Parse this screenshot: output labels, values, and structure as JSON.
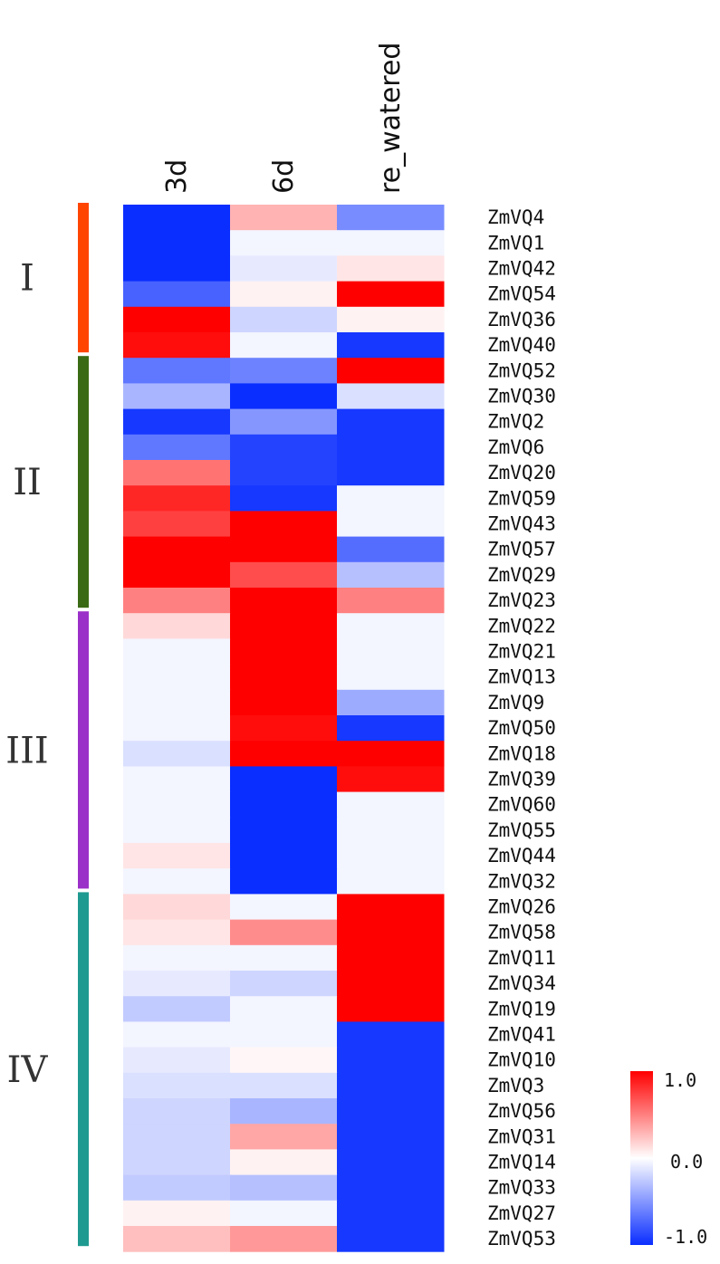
{
  "chart_data": {
    "type": "heatmap",
    "columns": [
      "3d",
      "6d",
      "re_watered"
    ],
    "rows": [
      "ZmVQ4",
      "ZmVQ1",
      "ZmVQ42",
      "ZmVQ54",
      "ZmVQ36",
      "ZmVQ40",
      "ZmVQ52",
      "ZmVQ30",
      "ZmVQ2",
      "ZmVQ6",
      "ZmVQ20",
      "ZmVQ59",
      "ZmVQ43",
      "ZmVQ57",
      "ZmVQ29",
      "ZmVQ23",
      "ZmVQ22",
      "ZmVQ21",
      "ZmVQ13",
      "ZmVQ9",
      "ZmVQ50",
      "ZmVQ18",
      "ZmVQ39",
      "ZmVQ60",
      "ZmVQ55",
      "ZmVQ44",
      "ZmVQ32",
      "ZmVQ26",
      "ZmVQ58",
      "ZmVQ11",
      "ZmVQ34",
      "ZmVQ19",
      "ZmVQ41",
      "ZmVQ10",
      "ZmVQ3",
      "ZmVQ56",
      "ZmVQ31",
      "ZmVQ14",
      "ZmVQ33",
      "ZmVQ27",
      "ZmVQ53"
    ],
    "values": [
      [
        -1.0,
        0.3,
        -0.55
      ],
      [
        -1.0,
        -0.05,
        -0.05
      ],
      [
        -1.0,
        -0.1,
        0.1
      ],
      [
        -0.75,
        0.05,
        1.0
      ],
      [
        1.0,
        -0.2,
        0.05
      ],
      [
        0.95,
        -0.05,
        -0.95
      ],
      [
        -0.65,
        -0.6,
        1.0
      ],
      [
        -0.35,
        -1.0,
        -0.15
      ],
      [
        -0.95,
        -0.5,
        -0.95
      ],
      [
        -0.65,
        -0.9,
        -0.95
      ],
      [
        0.55,
        -0.9,
        -0.95
      ],
      [
        0.85,
        -0.95,
        -0.05
      ],
      [
        0.75,
        1.0,
        -0.05
      ],
      [
        1.0,
        1.0,
        -0.7
      ],
      [
        1.0,
        0.7,
        -0.3
      ],
      [
        0.5,
        1.0,
        0.5
      ],
      [
        0.15,
        1.0,
        -0.05
      ],
      [
        -0.05,
        1.0,
        -0.05
      ],
      [
        -0.05,
        1.0,
        -0.05
      ],
      [
        -0.05,
        1.0,
        -0.4
      ],
      [
        -0.05,
        0.95,
        -0.95
      ],
      [
        -0.15,
        1.0,
        1.0
      ],
      [
        -0.05,
        -1.0,
        0.95
      ],
      [
        -0.05,
        -1.0,
        -0.05
      ],
      [
        -0.05,
        -1.0,
        -0.05
      ],
      [
        0.1,
        -1.0,
        -0.05
      ],
      [
        -0.05,
        -1.0,
        -0.05
      ],
      [
        0.15,
        -0.05,
        1.0
      ],
      [
        0.1,
        0.45,
        1.0
      ],
      [
        -0.05,
        -0.05,
        1.0
      ],
      [
        -0.1,
        -0.2,
        1.0
      ],
      [
        -0.25,
        -0.05,
        1.0
      ],
      [
        -0.05,
        -0.05,
        -0.95
      ],
      [
        -0.1,
        0.03,
        -0.95
      ],
      [
        -0.15,
        -0.15,
        -0.95
      ],
      [
        -0.2,
        -0.35,
        -0.95
      ],
      [
        -0.2,
        0.35,
        -0.95
      ],
      [
        -0.2,
        0.05,
        -0.95
      ],
      [
        -0.25,
        -0.3,
        -0.95
      ],
      [
        0.05,
        -0.05,
        -0.95
      ],
      [
        0.25,
        0.4,
        -0.95
      ]
    ],
    "groups": [
      {
        "label": "I",
        "start": 0,
        "end": 5,
        "color": "#ff4500"
      },
      {
        "label": "II",
        "start": 6,
        "end": 15,
        "color": "#3a6b14"
      },
      {
        "label": "III",
        "start": 16,
        "end": 26,
        "color": "#9b30c8"
      },
      {
        "label": "IV",
        "start": 27,
        "end": 40,
        "color": "#1f9a90"
      }
    ],
    "colorbar": {
      "min": -1.0,
      "max": 1.0,
      "tick_labels": [
        "1.0",
        "0.0",
        "-1.0"
      ],
      "colors": {
        "low": "#0a2eff",
        "mid": "#ffffff",
        "high": "#ff0000"
      }
    }
  }
}
